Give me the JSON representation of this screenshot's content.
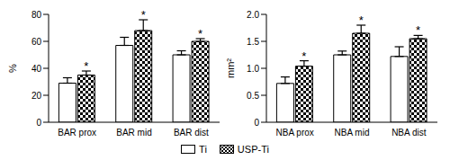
{
  "chart_data": [
    {
      "type": "bar",
      "y_label": "%",
      "categories": [
        "BAR prox",
        "BAR mid",
        "BAR dist"
      ],
      "ylim": [
        0,
        80
      ],
      "yticks": [
        0,
        20,
        40,
        60,
        80
      ],
      "legend": "bottom",
      "series": [
        {
          "name": "Ti",
          "color": "#ffffff",
          "values": [
            29,
            57,
            50
          ],
          "errors": [
            4,
            6,
            3
          ]
        },
        {
          "name": "USP-Ti",
          "color": "#000000",
          "marker": "checkered",
          "values": [
            35,
            68,
            60
          ],
          "errors": [
            3,
            8,
            2
          ],
          "annotations": [
            "*",
            "*",
            "*"
          ]
        }
      ]
    },
    {
      "type": "bar",
      "y_label": "mm²",
      "categories": [
        "NBA prox",
        "NBA mid",
        "NBA dist"
      ],
      "ylim": [
        0,
        2
      ],
      "yticks": [
        0,
        0.5,
        {
          "value": 1,
          "label": "1.0"
        },
        1.5,
        {
          "value": 2,
          "label": "2.0"
        }
      ],
      "legend": "bottom",
      "series": [
        {
          "name": "Ti",
          "color": "#ffffff",
          "values": [
            0.72,
            1.25,
            1.22
          ],
          "errors": [
            0.12,
            0.07,
            0.18
          ]
        },
        {
          "name": "USP-Ti",
          "color": "#000000",
          "marker": "checkered",
          "values": [
            1.04,
            1.65,
            1.55
          ],
          "errors": [
            0.1,
            0.15,
            0.06
          ],
          "annotations": [
            "*",
            "*",
            "*"
          ]
        }
      ]
    }
  ]
}
